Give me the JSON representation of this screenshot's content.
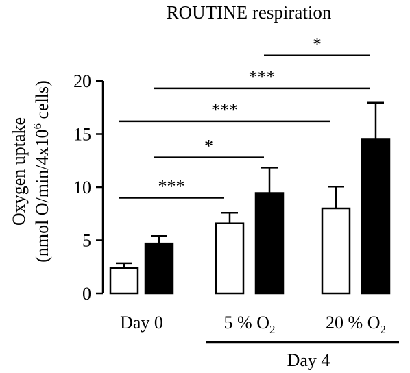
{
  "chart_data": {
    "type": "bar",
    "title": "ROUTINE respiration",
    "ylabel_line1": "Oxygen uptake",
    "ylabel_line2_prefix": "(nmol O/min/4x10",
    "ylabel_line2_sup": "6",
    "ylabel_line2_suffix": " cells)",
    "xlabel": "",
    "ylim": [
      0,
      20
    ],
    "yticks": [
      "0",
      "5",
      "10",
      "15",
      "20"
    ],
    "categories": [
      {
        "label": "Day 0",
        "sub": ""
      },
      {
        "label": "5 % O",
        "sub": "2"
      },
      {
        "label": "20 % O",
        "sub": "2"
      }
    ],
    "group_label": "Day 4",
    "series": [
      {
        "fill": "#ffffff",
        "values": [
          2.4,
          6.6,
          8.0
        ],
        "errors": [
          0.45,
          1.0,
          2.05
        ]
      },
      {
        "fill": "#000000",
        "values": [
          4.7,
          9.45,
          14.55
        ],
        "errors": [
          0.7,
          2.4,
          3.4
        ]
      }
    ],
    "significance": [
      {
        "label": "***",
        "from": [
          0,
          0
        ],
        "to": [
          1,
          0
        ],
        "y": 9.0
      },
      {
        "label": "*",
        "from": [
          0,
          1
        ],
        "to": [
          1,
          1
        ],
        "y": 12.8
      },
      {
        "label": "***",
        "from": [
          0,
          0
        ],
        "to": [
          2,
          0
        ],
        "y": 16.2
      },
      {
        "label": "***",
        "from": [
          0,
          1
        ],
        "to": [
          2,
          1
        ],
        "y": 19.3
      },
      {
        "label": "*",
        "from": [
          1,
          1
        ],
        "to": [
          2,
          1
        ],
        "y": 22.4
      }
    ]
  }
}
